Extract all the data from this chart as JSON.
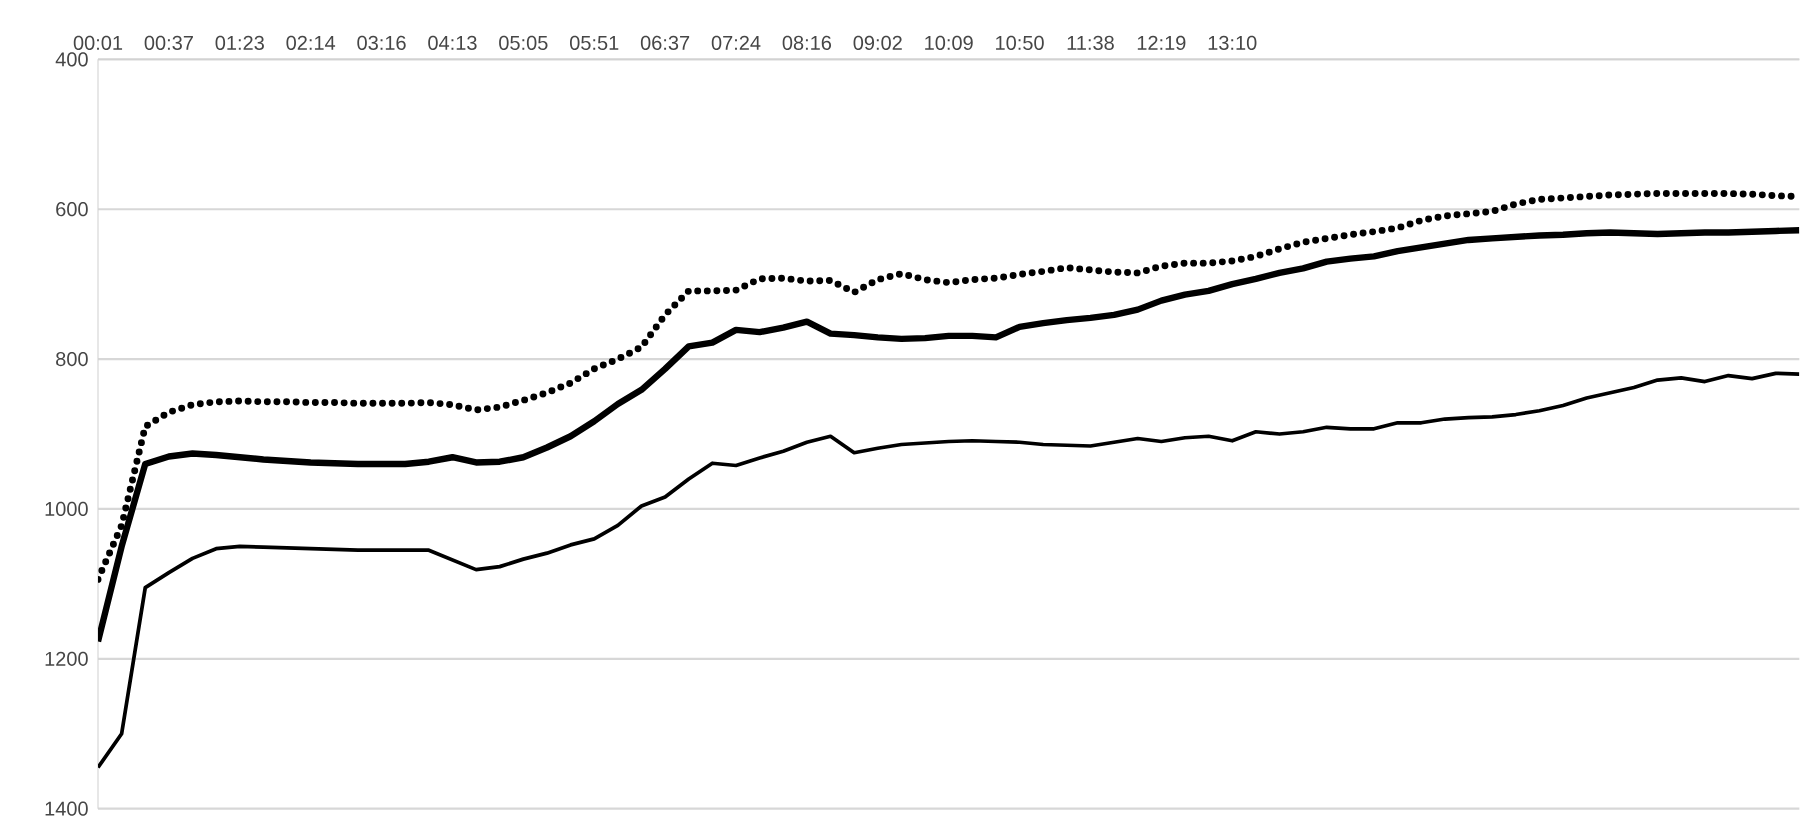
{
  "chart_data": {
    "type": "line",
    "categories": [
      "00:01",
      null,
      null,
      "00:37",
      null,
      null,
      "01:23",
      null,
      null,
      "02:14",
      null,
      null,
      "03:16",
      null,
      null,
      "04:13",
      null,
      null,
      "05:05",
      null,
      null,
      "05:51",
      null,
      null,
      "06:37",
      null,
      null,
      "07:24",
      null,
      null,
      "08:16",
      null,
      null,
      "09:02",
      null,
      null,
      "10:09",
      null,
      null,
      "10:50",
      null,
      null,
      "11:38",
      null,
      null,
      "12:19",
      null,
      null,
      "13:10",
      null,
      null,
      null,
      null,
      null,
      null,
      null,
      null,
      null,
      null,
      null,
      null,
      null,
      null,
      null,
      null,
      null,
      null,
      null,
      null,
      null,
      null,
      null,
      null
    ],
    "ylim": [
      1400,
      400
    ],
    "yticks": [
      400,
      600,
      800,
      1000,
      1200,
      1400
    ],
    "grid": "y",
    "series": [
      {
        "color": "#000000",
        "line_style": "dotted",
        "values": [
          1094,
          1022,
          890,
          871,
          861,
          857,
          856,
          857,
          857,
          858,
          858,
          859,
          859,
          859,
          858,
          861,
          868,
          864,
          855,
          845,
          832,
          813,
          800,
          784,
          741,
          709,
          709,
          708,
          693,
          692,
          696,
          695,
          711,
          694,
          686,
          694,
          698,
          694,
          692,
          687,
          683,
          678,
          681,
          684,
          685,
          676,
          672,
          672,
          669,
          663,
          653,
          644,
          639,
          634,
          630,
          625,
          615,
          609,
          606,
          603,
          593,
          587,
          585,
          583,
          581,
          580,
          579,
          579,
          579,
          579,
          580,
          582,
          583
        ]
      },
      {
        "color": "#000000",
        "line_style": "solid",
        "values": [
          1177,
          1050,
          940,
          930,
          926,
          928,
          931,
          934,
          936,
          938,
          939,
          940,
          940,
          940,
          937,
          931,
          938,
          937,
          931,
          918,
          903,
          883,
          860,
          841,
          813,
          783,
          778,
          761,
          764,
          758,
          750,
          766,
          768,
          771,
          773,
          772,
          769,
          769,
          771,
          757,
          752,
          748,
          745,
          741,
          734,
          722,
          714,
          709,
          700,
          693,
          685,
          679,
          670,
          666,
          663,
          656,
          651,
          646,
          641,
          639,
          637,
          635,
          634,
          632,
          631,
          632,
          633,
          632,
          631,
          631,
          630,
          629,
          628
        ]
      },
      {
        "color": "#000000",
        "line_style": "solid",
        "values": [
          1345,
          1300,
          1105,
          1085,
          1066,
          1053,
          1050,
          1051,
          1052,
          1053,
          1054,
          1055,
          1055,
          1055,
          1055,
          1068,
          1081,
          1077,
          1067,
          1059,
          1048,
          1040,
          1022,
          996,
          984,
          960,
          939,
          942,
          932,
          923,
          911,
          903,
          925,
          919,
          914,
          912,
          910,
          909,
          910,
          911,
          914,
          915,
          916,
          911,
          906,
          910,
          905,
          903,
          909,
          897,
          900,
          897,
          891,
          893,
          893,
          885,
          885,
          880,
          878,
          877,
          874,
          869,
          862,
          852,
          845,
          838,
          828,
          825,
          830,
          822,
          826,
          819,
          820
        ]
      }
    ]
  }
}
